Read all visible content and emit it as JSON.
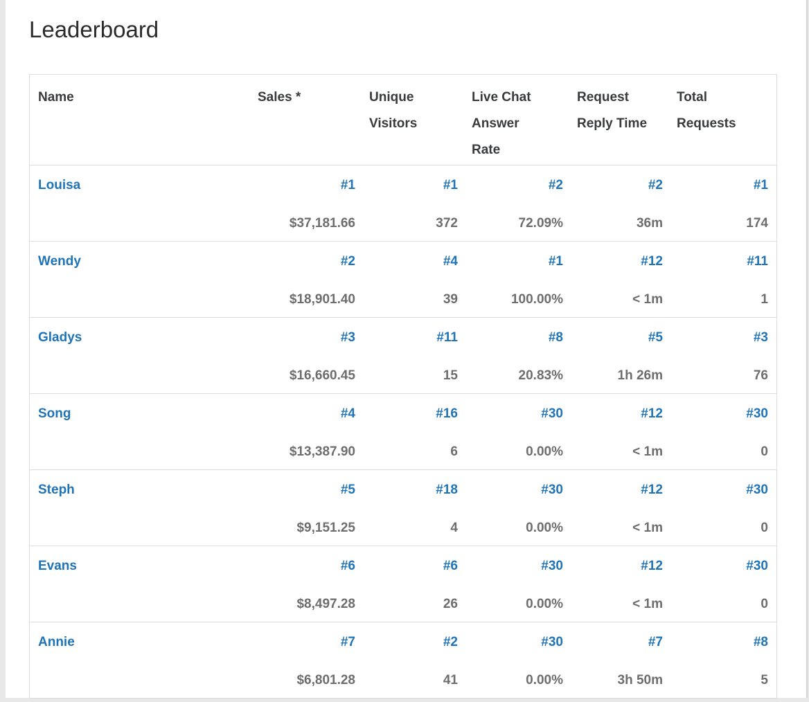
{
  "title": "Leaderboard",
  "colors": {
    "accent_blue": "#1f73b7",
    "value_gray": "#6d6d6d",
    "header_text": "#383a3c",
    "border": "#dddddd",
    "page_background": "#e8e8e8"
  },
  "table": {
    "columns": [
      {
        "label": "Name"
      },
      {
        "label": "Sales *"
      },
      {
        "label": "Unique\nVisitors"
      },
      {
        "label": "Live Chat\nAnswer\nRate"
      },
      {
        "label": "Request\nReply Time"
      },
      {
        "label": "Total\nRequests"
      }
    ],
    "rows": [
      {
        "name": "Louisa",
        "sales_rank": "#1",
        "sales": "$37,181.66",
        "visitors_rank": "#1",
        "visitors": "372",
        "chat_rank": "#2",
        "chat_rate": "72.09%",
        "reply_rank": "#2",
        "reply_time": "36m",
        "requests_rank": "#1",
        "requests": "174"
      },
      {
        "name": "Wendy",
        "sales_rank": "#2",
        "sales": "$18,901.40",
        "visitors_rank": "#4",
        "visitors": "39",
        "chat_rank": "#1",
        "chat_rate": "100.00%",
        "reply_rank": "#12",
        "reply_time": "< 1m",
        "requests_rank": "#11",
        "requests": "1"
      },
      {
        "name": "Gladys",
        "sales_rank": "#3",
        "sales": "$16,660.45",
        "visitors_rank": "#11",
        "visitors": "15",
        "chat_rank": "#8",
        "chat_rate": "20.83%",
        "reply_rank": "#5",
        "reply_time": "1h 26m",
        "requests_rank": "#3",
        "requests": "76"
      },
      {
        "name": "Song",
        "sales_rank": "#4",
        "sales": "$13,387.90",
        "visitors_rank": "#16",
        "visitors": "6",
        "chat_rank": "#30",
        "chat_rate": "0.00%",
        "reply_rank": "#12",
        "reply_time": "< 1m",
        "requests_rank": "#30",
        "requests": "0"
      },
      {
        "name": "Steph",
        "sales_rank": "#5",
        "sales": "$9,151.25",
        "visitors_rank": "#18",
        "visitors": "4",
        "chat_rank": "#30",
        "chat_rate": "0.00%",
        "reply_rank": "#12",
        "reply_time": "< 1m",
        "requests_rank": "#30",
        "requests": "0"
      },
      {
        "name": "Evans",
        "sales_rank": "#6",
        "sales": "$8,497.28",
        "visitors_rank": "#6",
        "visitors": "26",
        "chat_rank": "#30",
        "chat_rate": "0.00%",
        "reply_rank": "#12",
        "reply_time": "< 1m",
        "requests_rank": "#30",
        "requests": "0"
      },
      {
        "name": "Annie",
        "sales_rank": "#7",
        "sales": "$6,801.28",
        "visitors_rank": "#2",
        "visitors": "41",
        "chat_rank": "#30",
        "chat_rate": "0.00%",
        "reply_rank": "#7",
        "reply_time": "3h 50m",
        "requests_rank": "#8",
        "requests": "5"
      }
    ]
  }
}
